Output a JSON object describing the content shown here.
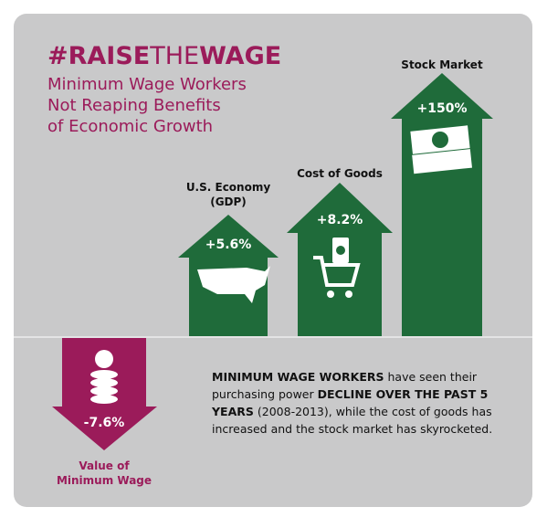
{
  "header": {
    "hashtag": {
      "part1": "#RAISE",
      "part2": "THE",
      "part3": "WAGE"
    },
    "subtitle": [
      "Minimum Wage Workers",
      "Not Reaping Benefits",
      "of Economic Growth"
    ]
  },
  "arrows": [
    {
      "label": [
        "U.S. Economy",
        "(GDP)"
      ],
      "value": "+5.6%"
    },
    {
      "label": [
        "Cost of Goods"
      ],
      "value": "+8.2%"
    },
    {
      "label": [
        "Stock Market"
      ],
      "value": "+150%"
    },
    {
      "label": [
        "Value of",
        "Minimum Wage"
      ],
      "value": "-7.6%"
    }
  ],
  "paragraph": [
    {
      "text": "MINIMUM WAGE WORKERS",
      "bold": true
    },
    {
      "text": " have seen their purchasing power ",
      "bold": false
    },
    {
      "text": "DECLINE OVER THE PAST 5 YEARS",
      "bold": true
    },
    {
      "text": " (2008-2013),  while the cost of goods has increased and the stock market has skyrocketed.",
      "bold": false
    }
  ]
}
